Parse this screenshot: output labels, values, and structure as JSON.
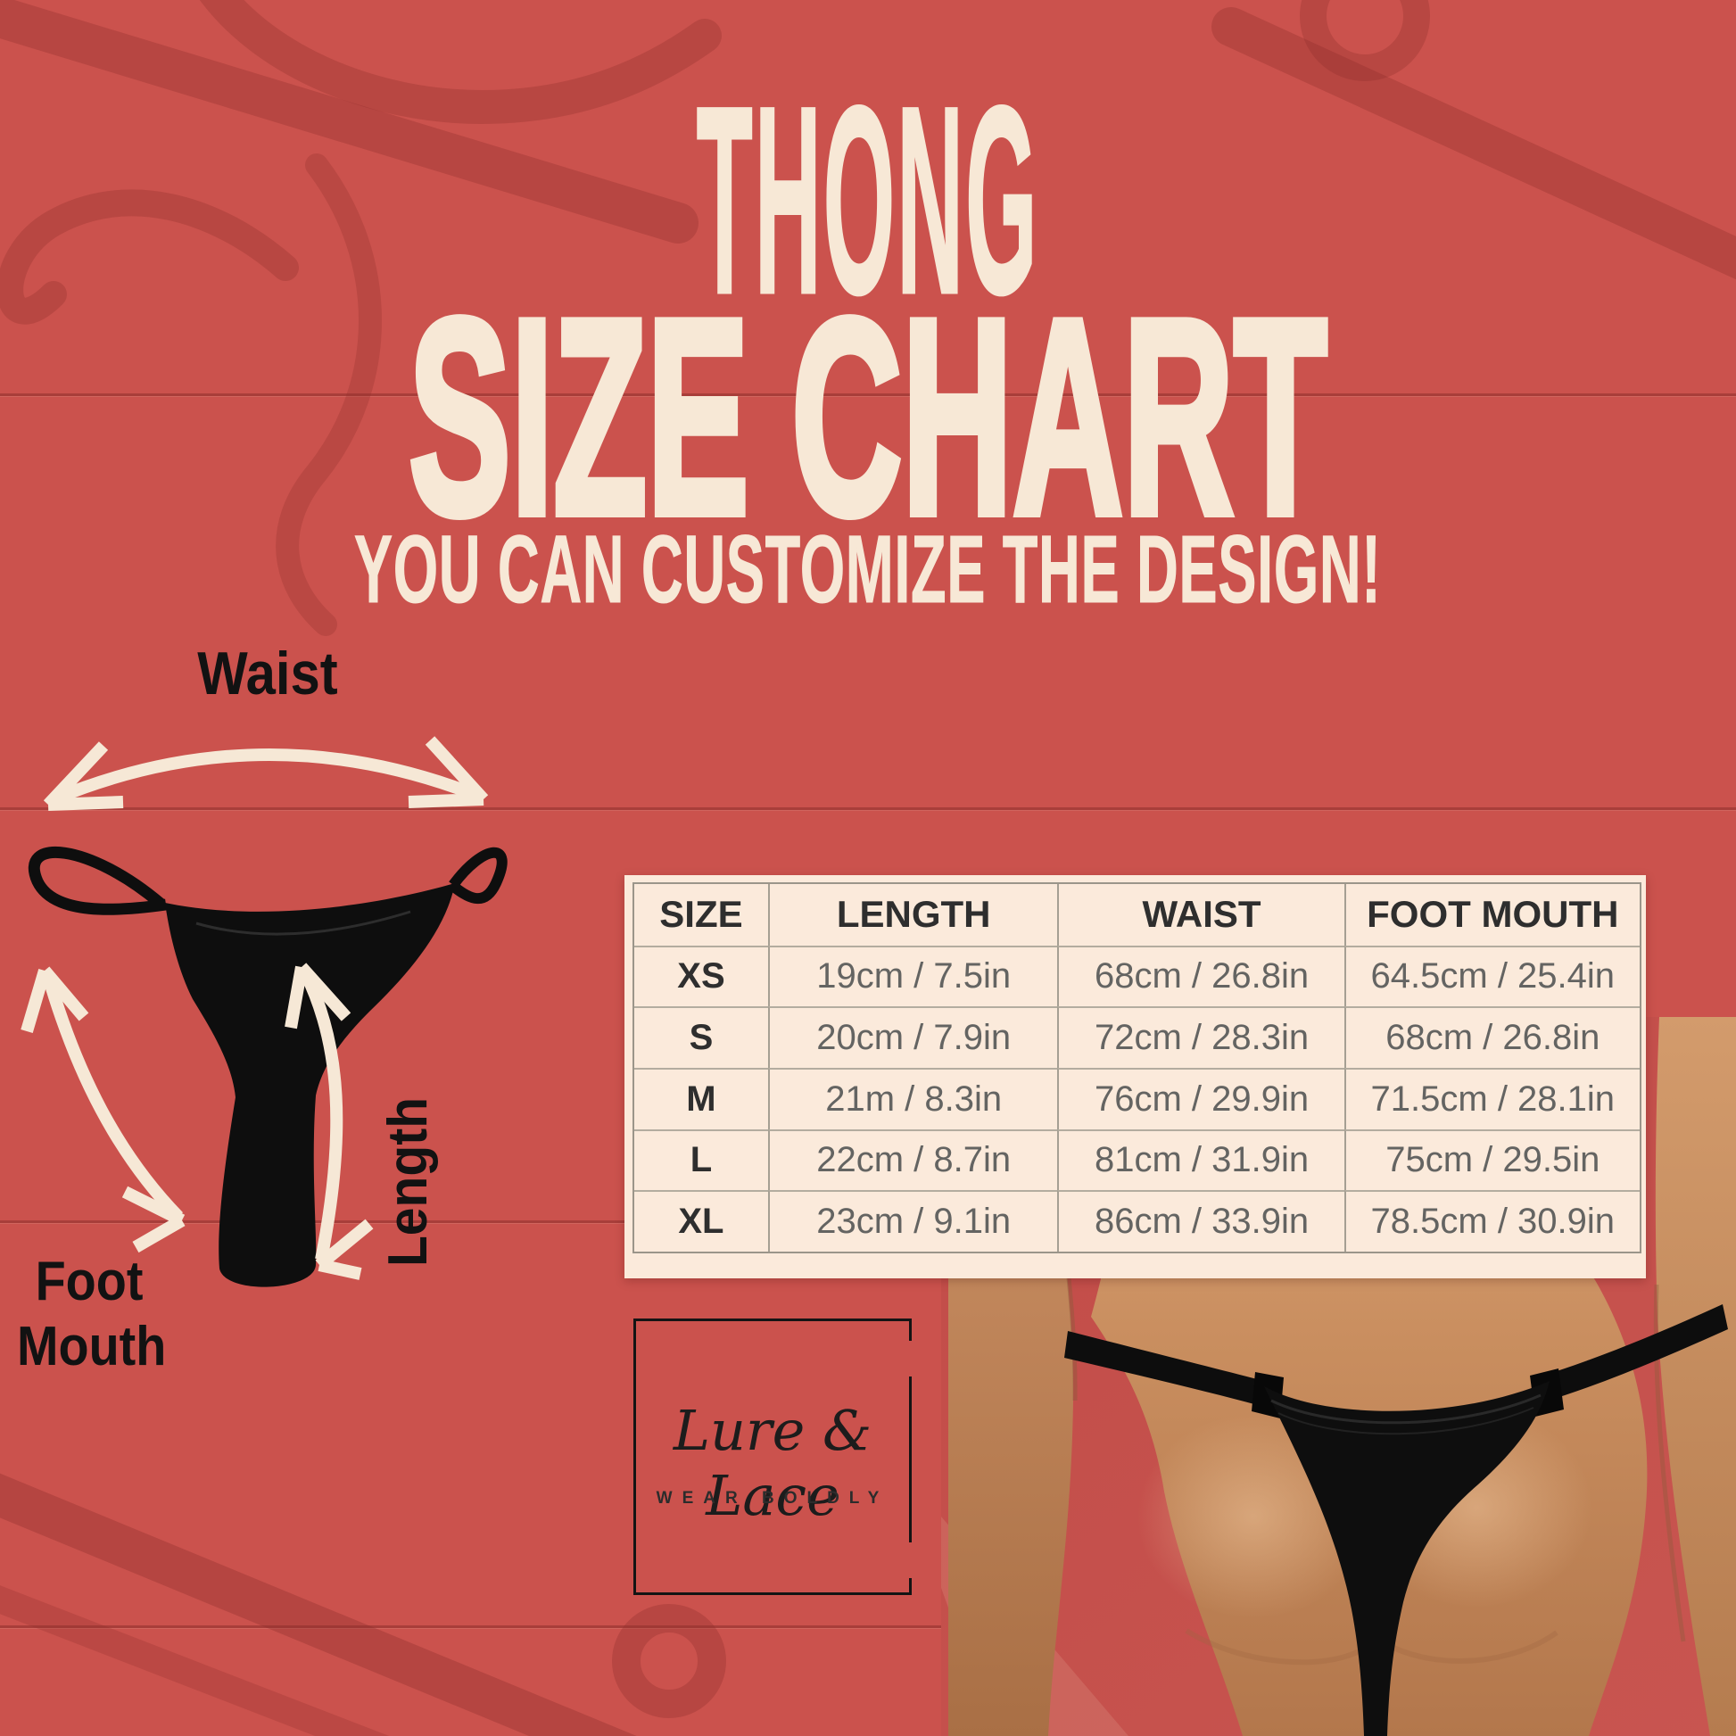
{
  "title": {
    "thong": "THONG",
    "size_chart": "SIZE CHART",
    "subtitle": "YOU CAN CUSTOMIZE THE DESIGN!"
  },
  "diagram": {
    "waist": "Waist",
    "length": "Length",
    "foot": "Foot",
    "mouth": "Mouth"
  },
  "size_table": {
    "headers": [
      "SIZE",
      "LENGTH",
      "WAIST",
      "FOOT MOUTH"
    ],
    "rows": [
      [
        "XS",
        "19cm / 7.5in",
        "68cm / 26.8in",
        "64.5cm / 25.4in"
      ],
      [
        "S",
        "20cm / 7.9in",
        "72cm / 28.3in",
        "68cm / 26.8in"
      ],
      [
        "M",
        "21m / 8.3in",
        "76cm / 29.9in",
        "71.5cm / 28.1in"
      ],
      [
        "L",
        "22cm / 8.7in",
        "81cm / 31.9in",
        "75cm / 29.5in"
      ],
      [
        "XL",
        "23cm / 9.1in",
        "86cm / 33.9in",
        "78.5cm / 30.9in"
      ]
    ]
  },
  "logo": {
    "brand": "Lure & Lace",
    "tagline": "WEAR BOLDLY"
  },
  "colors": {
    "background_red": "#cb524d",
    "cream": "#f7e8d6",
    "table_cream": "#fbeadb",
    "black": "#121212",
    "table_text": "#646462",
    "skin_mid": "#c68c5d"
  }
}
